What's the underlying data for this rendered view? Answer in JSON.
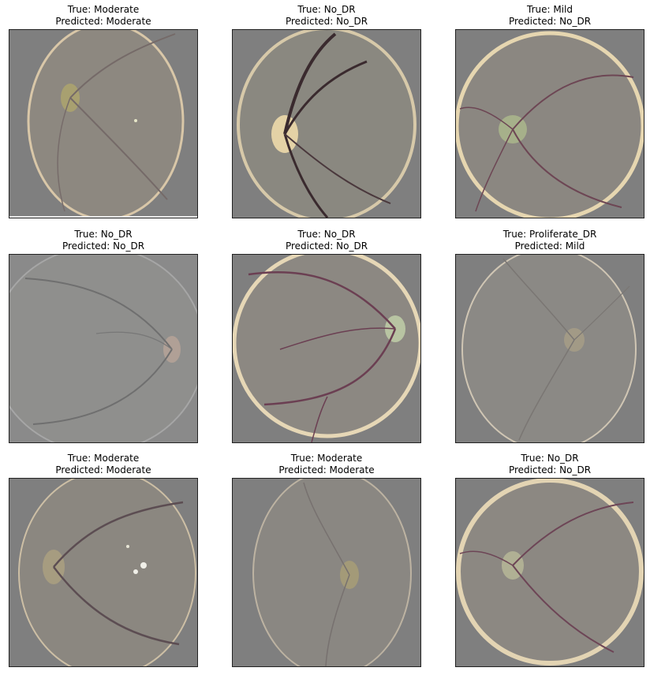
{
  "panels": [
    {
      "true_label": "True: Moderate",
      "predicted_label": "Predicted: Moderate"
    },
    {
      "true_label": "True: No_DR",
      "predicted_label": "Predicted: No_DR"
    },
    {
      "true_label": "True: Mild",
      "predicted_label": "Predicted: No_DR"
    },
    {
      "true_label": "True: No_DR",
      "predicted_label": "Predicted: No_DR"
    },
    {
      "true_label": "True: No_DR",
      "predicted_label": "Predicted: No_DR"
    },
    {
      "true_label": "True: Proliferate_DR",
      "predicted_label": "Predicted: Mild"
    },
    {
      "true_label": "True: Moderate",
      "predicted_label": "Predicted: Moderate"
    },
    {
      "true_label": "True: Moderate",
      "predicted_label": "Predicted: Moderate"
    },
    {
      "true_label": "True: No_DR",
      "predicted_label": "Predicted: No_DR"
    }
  ],
  "colors": {
    "background": "#7f7f7f",
    "retina": "#8c8780",
    "vessel": "#6b4a52",
    "optic_disc": "#c8b48e"
  }
}
